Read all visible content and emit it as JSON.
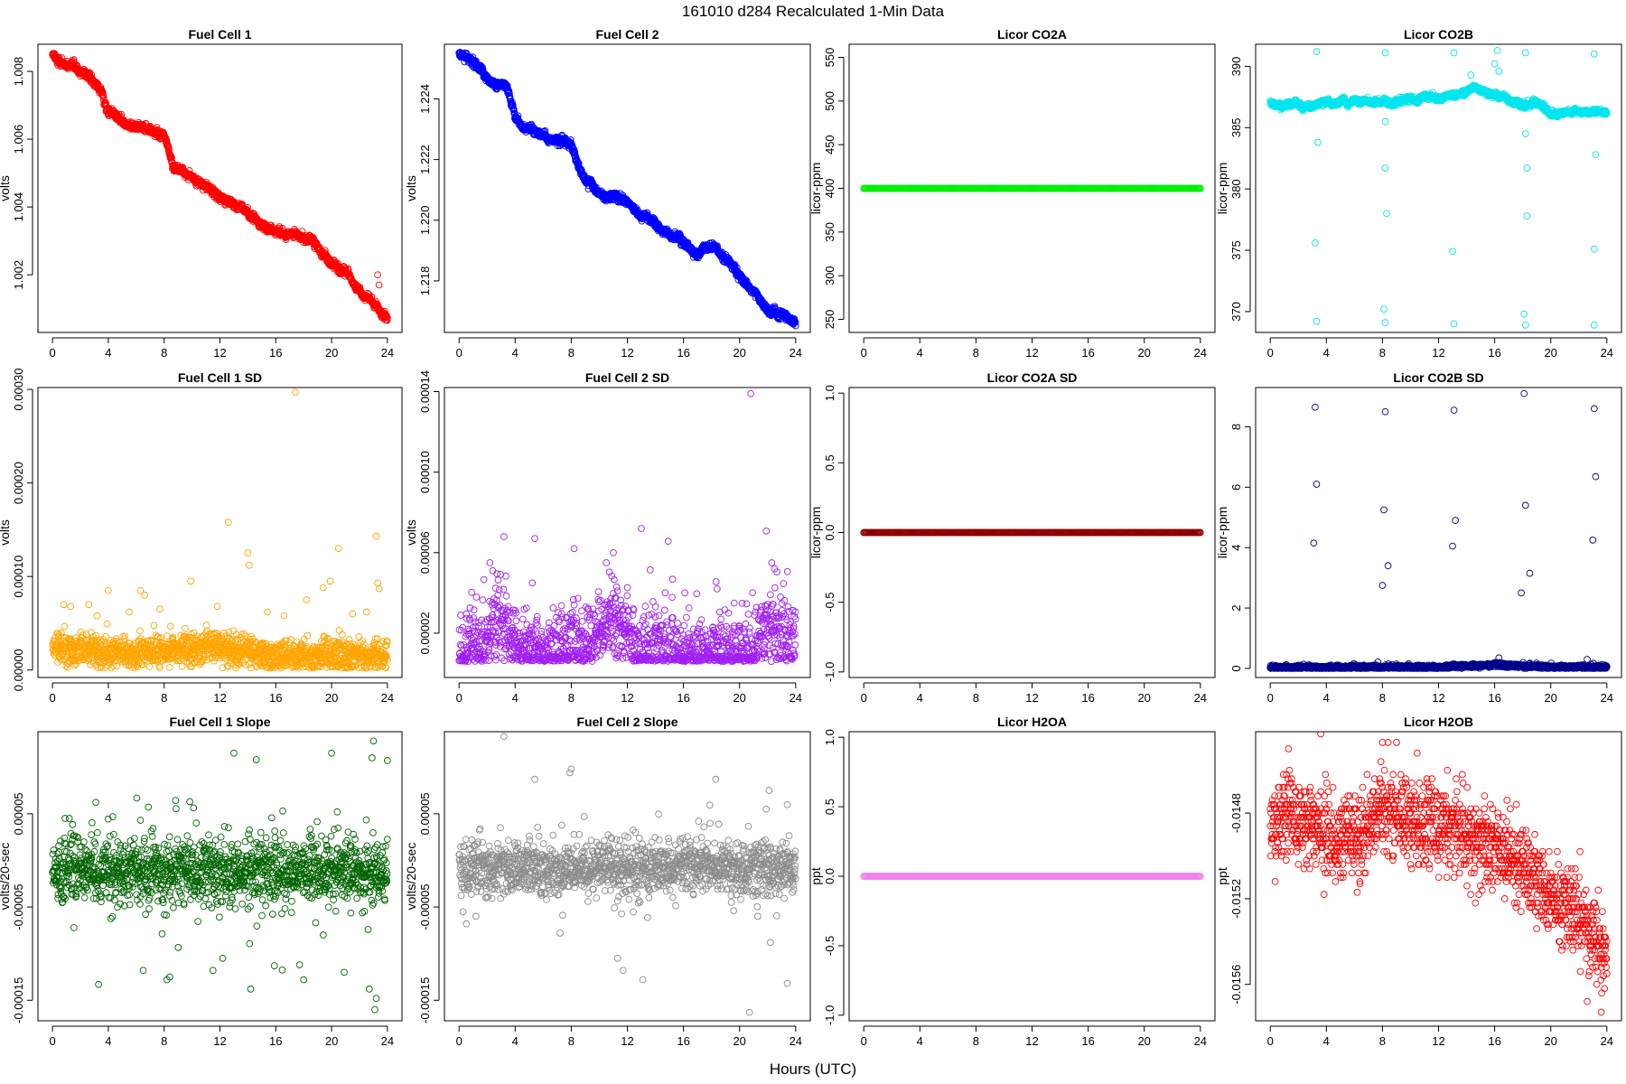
{
  "figure": {
    "title": "161010    d284    Recalculated 1-Min Data",
    "xlabel": "Hours (UTC)"
  },
  "chart_data": [
    {
      "key": "fc1",
      "type": "scatter",
      "title": "Fuel Cell 1",
      "ylabel": "volts",
      "color": "#ff0000",
      "xlim": [
        0,
        24
      ],
      "ylim": [
        1.0003,
        1.0088
      ],
      "xticks": [
        0,
        4,
        8,
        12,
        16,
        20,
        24
      ],
      "yticks": [
        1.002,
        1.004,
        1.006,
        1.008
      ],
      "ytick_labels": [
        "1.002",
        "1.004",
        "1.006",
        "1.008"
      ],
      "pattern": {
        "kind": "trend",
        "x": [
          0,
          2,
          3.5,
          4,
          6,
          8,
          8.7,
          10,
          12,
          14,
          16,
          18,
          20,
          22,
          24
        ],
        "y": [
          1.0085,
          1.0078,
          1.0074,
          1.0068,
          1.0064,
          1.006,
          1.0052,
          1.0048,
          1.0042,
          1.0038,
          1.0033,
          1.003,
          1.0025,
          1.0016,
          1.0006
        ],
        "noise": 0.00012
      },
      "outliers": [
        [
          23.3,
          1.002
        ],
        [
          23.4,
          1.0017
        ]
      ]
    },
    {
      "key": "fc2",
      "type": "scatter",
      "title": "Fuel Cell 2",
      "ylabel": "volts",
      "color": "#0000ff",
      "xlim": [
        0,
        24
      ],
      "ylim": [
        1.2163,
        1.2258
      ],
      "xticks": [
        0,
        4,
        8,
        12,
        16,
        20,
        24
      ],
      "yticks": [
        1.218,
        1.22,
        1.222,
        1.224
      ],
      "ytick_labels": [
        "1.218",
        "1.220",
        "1.222",
        "1.224"
      ],
      "pattern": {
        "kind": "trend",
        "x": [
          0,
          2,
          3.5,
          4,
          6,
          8,
          9,
          10,
          12,
          14,
          16,
          17,
          18,
          20,
          22,
          24
        ],
        "y": [
          1.2255,
          1.2247,
          1.2242,
          1.2235,
          1.2228,
          1.2225,
          1.2213,
          1.221,
          1.2205,
          1.2198,
          1.2192,
          1.2188,
          1.2192,
          1.218,
          1.2172,
          1.2166
        ],
        "noise": 0.00013
      },
      "outliers": []
    },
    {
      "key": "co2a",
      "type": "scatter",
      "title": "Licor CO2A",
      "ylabel": "licor-ppm",
      "color": "#00ee00",
      "xlim": [
        0,
        24
      ],
      "ylim": [
        235,
        565
      ],
      "xticks": [
        0,
        4,
        8,
        12,
        16,
        20,
        24
      ],
      "yticks": [
        250,
        300,
        350,
        400,
        450,
        500,
        550
      ],
      "ytick_labels": [
        "250",
        "300",
        "350",
        "400",
        "450",
        "500",
        "550"
      ],
      "pattern": {
        "kind": "constant",
        "value": 400
      },
      "outliers": []
    },
    {
      "key": "co2b",
      "type": "scatter",
      "title": "Licor CO2B",
      "ylabel": "licor-ppm",
      "color": "#00e5ee",
      "xlim": [
        0,
        24
      ],
      "ylim": [
        368.3,
        391.8
      ],
      "xticks": [
        0,
        4,
        8,
        12,
        16,
        20,
        24
      ],
      "yticks": [
        370,
        375,
        380,
        385,
        390
      ],
      "ytick_labels": [
        "370",
        "375",
        "380",
        "385",
        "390"
      ],
      "pattern": {
        "kind": "trend",
        "x": [
          0,
          4,
          8,
          10,
          12,
          14,
          16,
          18,
          19,
          20,
          22,
          24
        ],
        "y": [
          387.0,
          387.1,
          387.2,
          387.5,
          387.5,
          388.0,
          387.8,
          386.8,
          387.2,
          386.2,
          386.6,
          386.3
        ],
        "noise": 0.25
      },
      "outliers": [
        [
          3.3,
          391.2
        ],
        [
          8.2,
          391.1
        ],
        [
          13.1,
          391.1
        ],
        [
          18.2,
          391.1
        ],
        [
          23.1,
          391.0
        ],
        [
          3.4,
          383.8
        ],
        [
          8.2,
          385.5
        ],
        [
          8.2,
          381.7
        ],
        [
          18.2,
          384.5
        ],
        [
          18.3,
          381.7
        ],
        [
          23.2,
          382.8
        ],
        [
          8.3,
          378.0
        ],
        [
          18.3,
          377.8
        ],
        [
          3.2,
          375.6
        ],
        [
          13.0,
          374.9
        ],
        [
          23.1,
          375.1
        ],
        [
          8.1,
          370.2
        ],
        [
          18.1,
          369.8
        ],
        [
          3.3,
          369.2
        ],
        [
          8.2,
          369.1
        ],
        [
          13.1,
          369.0
        ],
        [
          18.2,
          368.9
        ],
        [
          23.1,
          368.9
        ],
        [
          16.2,
          391.3
        ],
        [
          16.0,
          390.2
        ],
        [
          16.3,
          389.6
        ],
        [
          14.3,
          389.3
        ]
      ]
    },
    {
      "key": "fc1sd",
      "type": "scatter",
      "title": "Fuel Cell 1 SD",
      "ylabel": "volts",
      "color": "#ffa500",
      "xlim": [
        0,
        24
      ],
      "ylim": [
        -8e-06,
        0.000302
      ],
      "xticks": [
        0,
        4,
        8,
        12,
        16,
        20,
        24
      ],
      "yticks": [
        0,
        0.0001,
        0.0002,
        0.0003
      ],
      "ytick_labels": [
        "0.00000",
        "0.00010",
        "0.00020",
        "0.00030"
      ],
      "pattern": {
        "kind": "noisy",
        "x": [
          0,
          4,
          8,
          12,
          16,
          20,
          24
        ],
        "y": [
          2.5e-05,
          1.8e-05,
          2e-05,
          2.5e-05,
          1.5e-05,
          1.6e-05,
          1.4e-05
        ],
        "noise": 8e-06,
        "floor": 2e-06
      },
      "outliers": [
        [
          17.4,
          0.000297
        ],
        [
          12.6,
          0.000158
        ],
        [
          14.0,
          0.000125
        ],
        [
          14.1,
          0.000112
        ],
        [
          20.5,
          0.00013
        ],
        [
          23.2,
          0.000143
        ],
        [
          23.3,
          9.3e-05
        ],
        [
          23.4,
          8.7e-05
        ],
        [
          9.9,
          9.5e-05
        ],
        [
          4.0,
          8.5e-05
        ],
        [
          6.3,
          8.5e-05
        ],
        [
          6.6,
          8e-05
        ],
        [
          19.4,
          8.8e-05
        ],
        [
          19.9,
          9.5e-05
        ],
        [
          18.2,
          7.5e-05
        ],
        [
          0.8,
          7e-05
        ],
        [
          1.3,
          6.8e-05
        ],
        [
          2.6,
          7e-05
        ],
        [
          5.5,
          6.2e-05
        ],
        [
          7.7,
          6.5e-05
        ],
        [
          11.8,
          6.8e-05
        ],
        [
          15.4,
          6.2e-05
        ],
        [
          16.6,
          5.8e-05
        ],
        [
          21.5,
          6e-05
        ],
        [
          22.5,
          6.2e-05
        ],
        [
          3.2,
          5.8e-05
        ]
      ]
    },
    {
      "key": "fc2sd",
      "type": "scatter",
      "title": "Fuel Cell 2 SD",
      "ylabel": "volts",
      "color": "#a020f0",
      "xlim": [
        0,
        24
      ],
      "ylim": [
        -2e-06,
        0.000142
      ],
      "xticks": [
        0,
        4,
        8,
        12,
        16,
        20,
        24
      ],
      "yticks": [
        2e-05,
        6e-05,
        0.0001,
        0.00014
      ],
      "ytick_labels": [
        "0.00002",
        "0.00006",
        "0.00010",
        "0.00014"
      ],
      "pattern": {
        "kind": "noisy",
        "x": [
          0,
          2,
          3,
          4,
          6,
          8,
          9,
          10,
          11,
          12,
          13,
          16,
          20,
          21,
          22,
          24
        ],
        "y": [
          1.2e-05,
          1.8e-05,
          2.5e-05,
          1.5e-05,
          1e-05,
          1.4e-05,
          1.2e-05,
          2e-05,
          2.8e-05,
          2e-05,
          1.2e-05,
          1e-05,
          1e-05,
          1.2e-05,
          2.5e-05,
          1.5e-05
        ],
        "noise": 9e-06,
        "floor": 6e-06
      },
      "outliers": [
        [
          20.8,
          0.000139
        ],
        [
          3.2,
          6.8e-05
        ],
        [
          5.4,
          6.7e-05
        ],
        [
          13.0,
          7.2e-05
        ],
        [
          8.2,
          6.2e-05
        ],
        [
          11.0,
          6e-05
        ],
        [
          10.5,
          5.5e-05
        ],
        [
          2.2,
          5.5e-05
        ],
        [
          22.3,
          5.5e-05
        ],
        [
          22.5,
          5.2e-05
        ],
        [
          18.4,
          4.2e-05
        ],
        [
          16.1,
          4e-05
        ],
        [
          14.7,
          4e-05
        ]
      ]
    },
    {
      "key": "co2asd",
      "type": "scatter",
      "title": "Licor CO2A SD",
      "ylabel": "licor-ppm",
      "color": "#8b0000",
      "xlim": [
        0,
        24
      ],
      "ylim": [
        -1.04,
        1.04
      ],
      "xticks": [
        0,
        4,
        8,
        12,
        16,
        20,
        24
      ],
      "yticks": [
        -1,
        -0.5,
        0,
        0.5,
        1
      ],
      "ytick_labels": [
        "-1.0",
        "-0.5",
        "0.0",
        "0.5",
        "1.0"
      ],
      "pattern": {
        "kind": "constant",
        "value": 0
      },
      "outliers": []
    },
    {
      "key": "co2bsd",
      "type": "scatter",
      "title": "Licor CO2B SD",
      "ylabel": "licor-ppm",
      "color": "#00008b",
      "xlim": [
        0,
        24
      ],
      "ylim": [
        -0.3,
        9.3
      ],
      "xticks": [
        0,
        4,
        8,
        12,
        16,
        20,
        24
      ],
      "yticks": [
        0,
        2,
        4,
        6,
        8
      ],
      "ytick_labels": [
        "0",
        "2",
        "4",
        "6",
        "8"
      ],
      "pattern": {
        "kind": "noisy",
        "x": [
          0,
          12,
          14,
          16,
          18,
          20,
          24
        ],
        "y": [
          0.03,
          0.05,
          0.08,
          0.12,
          0.08,
          0.05,
          0.05
        ],
        "noise": 0.03,
        "floor": 0
      },
      "outliers": [
        [
          3.2,
          8.65
        ],
        [
          8.2,
          8.5
        ],
        [
          13.1,
          8.55
        ],
        [
          18.1,
          9.1
        ],
        [
          23.1,
          8.6
        ],
        [
          3.3,
          6.1
        ],
        [
          23.2,
          6.35
        ],
        [
          3.1,
          4.15
        ],
        [
          13.2,
          4.9
        ],
        [
          13.0,
          4.05
        ],
        [
          23.0,
          4.25
        ],
        [
          8.1,
          5.25
        ],
        [
          18.2,
          5.4
        ],
        [
          8.4,
          3.4
        ],
        [
          18.5,
          3.15
        ],
        [
          8.0,
          2.75
        ],
        [
          17.9,
          2.5
        ],
        [
          16.3,
          0.35
        ],
        [
          22.6,
          0.3
        ]
      ]
    },
    {
      "key": "fc1slope",
      "type": "scatter",
      "title": "Fuel Cell 1 Slope",
      "ylabel": "volts/20-sec",
      "color": "#006400",
      "xlim": [
        0,
        24
      ],
      "ylim": [
        -0.000172,
        0.000138
      ],
      "xticks": [
        0,
        4,
        8,
        12,
        16,
        20,
        24
      ],
      "yticks": [
        -0.00015,
        -5e-05,
        5e-05
      ],
      "ytick_labels": [
        "-0.00015",
        "-0.00005",
        "0.00005"
      ],
      "pattern": {
        "kind": "noisy",
        "x": [
          0,
          24
        ],
        "y": [
          -1.2e-05,
          -1.2e-05
        ],
        "noise": 1.7e-05
      },
      "outliers": [
        [
          23.0,
          0.000128
        ],
        [
          13.0,
          0.000115
        ],
        [
          20.0,
          0.000115
        ],
        [
          14.6,
          0.000108
        ],
        [
          22.9,
          0.00011
        ],
        [
          24.0,
          0.000107
        ],
        [
          16.5,
          5.3e-05
        ],
        [
          3.3,
          -0.000133
        ],
        [
          6.5,
          -0.000118
        ],
        [
          8.4,
          -0.000125
        ],
        [
          8.2,
          -0.000128
        ],
        [
          11.5,
          -0.000118
        ],
        [
          14.2,
          -0.000138
        ],
        [
          12.2,
          -0.000105
        ],
        [
          15.9,
          -0.000113
        ],
        [
          18.0,
          -0.000128
        ],
        [
          17.7,
          -0.000112
        ],
        [
          20.9,
          -0.00012
        ],
        [
          22.7,
          -0.000138
        ],
        [
          23.1,
          -0.00016
        ],
        [
          23.2,
          -0.000148
        ],
        [
          19.4,
          -8e-05
        ],
        [
          1.2,
          4.5e-05
        ],
        [
          0.9,
          4.5e-05
        ],
        [
          6.3,
          4.3e-05
        ],
        [
          10.3,
          4e-05
        ],
        [
          20.4,
          5.2e-05
        ]
      ]
    },
    {
      "key": "fc2slope",
      "type": "scatter",
      "title": "Fuel Cell 2 Slope",
      "ylabel": "volts/20-sec",
      "color": "#8c8c8c",
      "xlim": [
        0,
        24
      ],
      "ylim": [
        -0.000172,
        0.000138
      ],
      "xticks": [
        0,
        4,
        8,
        12,
        16,
        20,
        24
      ],
      "yticks": [
        -0.00015,
        -5e-05,
        5e-05
      ],
      "ytick_labels": [
        "-0.00015",
        "-0.00005",
        "0.00005"
      ],
      "pattern": {
        "kind": "noisy",
        "x": [
          0,
          24
        ],
        "y": [
          -8e-06,
          -8e-06
        ],
        "noise": 1.4e-05
      },
      "outliers": [
        [
          3.2,
          0.000133
        ],
        [
          8.0,
          9.8e-05
        ],
        [
          7.9,
          9.4e-05
        ],
        [
          5.4,
          8.7e-05
        ],
        [
          18.3,
          8.7e-05
        ],
        [
          22.1,
          7.5e-05
        ],
        [
          21.9,
          5.5e-05
        ],
        [
          11.3,
          -0.000105
        ],
        [
          11.7,
          -0.000118
        ],
        [
          13.1,
          -0.000128
        ],
        [
          20.7,
          -0.000163
        ],
        [
          23.4,
          -0.000132
        ],
        [
          22.2,
          -8.8e-05
        ],
        [
          7.2,
          -7.8e-05
        ],
        [
          1.2,
          -6e-05
        ],
        [
          21.3,
          -6e-05
        ]
      ]
    },
    {
      "key": "h2oa",
      "type": "scatter",
      "title": "Licor H2OA",
      "ylabel": "ppt",
      "color": "#ee82ee",
      "xlim": [
        0,
        24
      ],
      "ylim": [
        -1.04,
        1.04
      ],
      "xticks": [
        0,
        4,
        8,
        12,
        16,
        20,
        24
      ],
      "yticks": [
        -1,
        -0.5,
        0,
        0.5,
        1
      ],
      "ytick_labels": [
        "-1.0",
        "-0.5",
        "0.0",
        "0.5",
        "1.0"
      ],
      "pattern": {
        "kind": "constant",
        "value": 0
      },
      "outliers": []
    },
    {
      "key": "h2ob",
      "type": "scatter",
      "title": "Licor H2OB",
      "ylabel": "ppt",
      "color": "#ff0000",
      "xlim": [
        0,
        24
      ],
      "ylim": [
        -0.01577,
        -0.01442
      ],
      "xticks": [
        0,
        4,
        8,
        12,
        16,
        20,
        24
      ],
      "yticks": [
        -0.0156,
        -0.0152,
        -0.0148
      ],
      "ytick_labels": [
        "-0.0156",
        "-0.0152",
        "-0.0148"
      ],
      "pattern": {
        "kind": "quantized",
        "x": [
          0,
          1,
          2,
          3,
          4,
          6,
          8,
          10,
          12,
          14,
          16,
          17,
          18,
          19,
          20,
          21,
          22,
          23,
          24
        ],
        "y": [
          -0.0149,
          -0.01482,
          -0.01484,
          -0.01485,
          -0.01492,
          -0.01493,
          -0.01478,
          -0.01483,
          -0.01486,
          -0.01492,
          -0.01495,
          -0.01499,
          -0.01505,
          -0.01512,
          -0.01518,
          -0.01523,
          -0.0153,
          -0.01537,
          -0.01545
        ],
        "noise": 0.0001,
        "step": 2e-05
      },
      "outliers": [
        [
          3.6,
          -0.01443
        ],
        [
          8.4,
          -0.01447
        ],
        [
          8.0,
          -0.01447
        ],
        [
          9.0,
          -0.01447
        ],
        [
          1.3,
          -0.0145
        ],
        [
          6.2,
          -0.01517
        ],
        [
          5.0,
          -0.01508
        ],
        [
          6.4,
          -0.01513
        ],
        [
          23.6,
          -0.01573
        ],
        [
          22.6,
          -0.01568
        ],
        [
          24.0,
          -0.01555
        ]
      ]
    }
  ]
}
